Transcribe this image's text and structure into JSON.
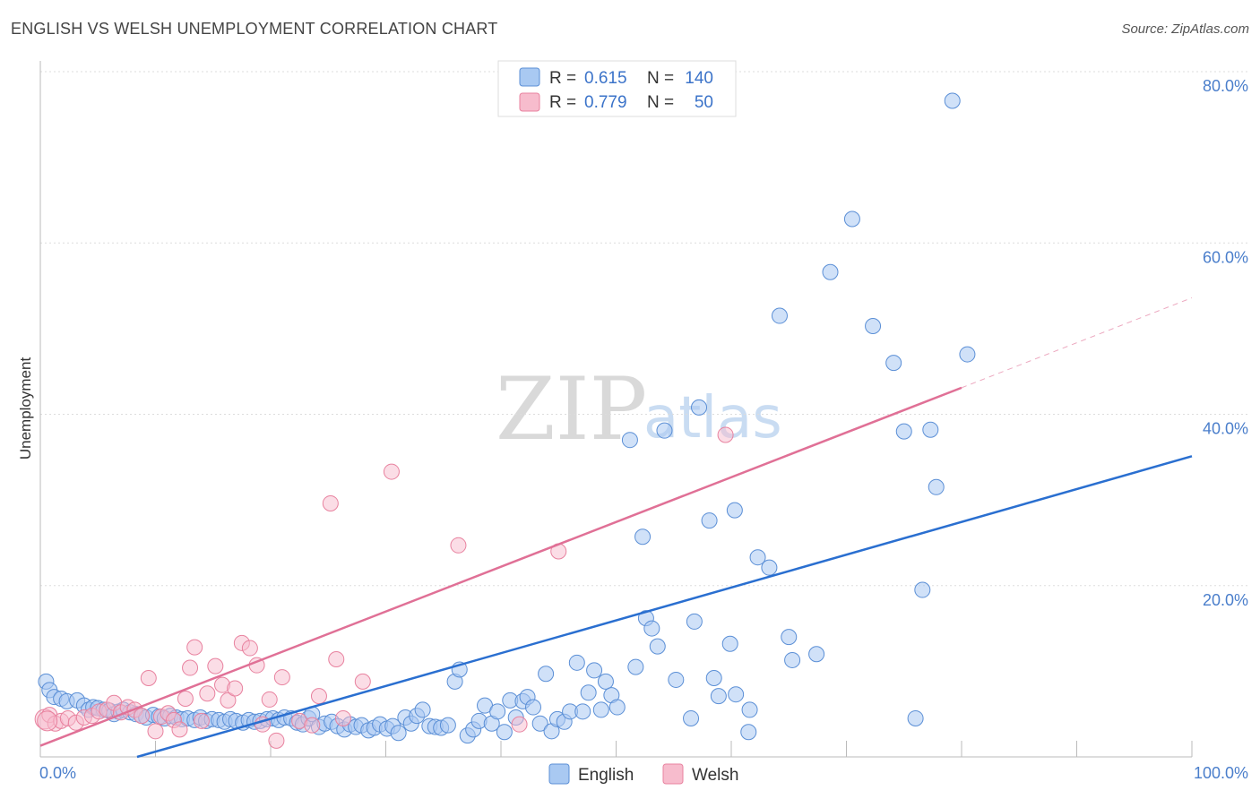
{
  "title": "ENGLISH VS WELSH UNEMPLOYMENT CORRELATION CHART",
  "source": "Source: ZipAtlas.com",
  "watermark": {
    "zip": "ZIP",
    "atlas": "atlas"
  },
  "colors": {
    "english_fill": "#a9c9f2",
    "english_stroke": "#5b8fd6",
    "english_line": "#2a6fd0",
    "welsh_fill": "#f7bccd",
    "welsh_stroke": "#e8829f",
    "welsh_line": "#e07096",
    "grid": "#dddddd",
    "tick_label": "#4a7ecb"
  },
  "legend": {
    "english": {
      "r_label": "R =",
      "r_value": "0.615",
      "n_label": "N =",
      "n_value": "140"
    },
    "welsh": {
      "r_label": "R =",
      "r_value": "0.779",
      "n_label": "N =",
      "n_value": "50"
    }
  },
  "chart_data": {
    "type": "scatter",
    "title": "ENGLISH VS WELSH UNEMPLOYMENT CORRELATION CHART",
    "xlabel": "",
    "ylabel": "Unemployment",
    "xlim": [
      0,
      100
    ],
    "ylim": [
      0,
      80
    ],
    "x_tick_labels": {
      "left": "0.0%",
      "right": "100.0%"
    },
    "y_ticks": [
      20,
      40,
      60,
      80
    ],
    "y_tick_labels": [
      "20.0%",
      "40.0%",
      "60.0%",
      "80.0%"
    ],
    "grid": true,
    "legend_position": "top-center",
    "series": [
      {
        "name": "English",
        "r": 0.615,
        "n": 140,
        "trend": {
          "x0": 8.4,
          "y0": 0,
          "x1": 100,
          "y1": 35.1
        },
        "points": [
          [
            0.5,
            8.8
          ],
          [
            0.8,
            7.8
          ],
          [
            1.2,
            7
          ],
          [
            1.8,
            6.8
          ],
          [
            2.3,
            6.5
          ],
          [
            3.2,
            6.6
          ],
          [
            3.8,
            6
          ],
          [
            4.2,
            5.5
          ],
          [
            4.6,
            5.8
          ],
          [
            5,
            5.7
          ],
          [
            5.5,
            5.5
          ],
          [
            6,
            5.4
          ],
          [
            6.4,
            5
          ],
          [
            6.8,
            5.3
          ],
          [
            7.2,
            5.5
          ],
          [
            7.8,
            5.2
          ],
          [
            8.3,
            5
          ],
          [
            8.8,
            4.8
          ],
          [
            9.2,
            4.6
          ],
          [
            9.8,
            4.9
          ],
          [
            10.3,
            4.7
          ],
          [
            10.8,
            4.5
          ],
          [
            11.3,
            4.8
          ],
          [
            11.8,
            4.6
          ],
          [
            12.3,
            4.4
          ],
          [
            12.8,
            4.5
          ],
          [
            13.4,
            4.3
          ],
          [
            13.9,
            4.6
          ],
          [
            14.4,
            4.2
          ],
          [
            14.9,
            4.4
          ],
          [
            15.5,
            4.3
          ],
          [
            16,
            4.1
          ],
          [
            16.5,
            4.4
          ],
          [
            17,
            4.2
          ],
          [
            17.6,
            4
          ],
          [
            18.1,
            4.3
          ],
          [
            18.6,
            4.1
          ],
          [
            19.1,
            4.2
          ],
          [
            19.7,
            4.4
          ],
          [
            20.2,
            4.5
          ],
          [
            20.7,
            4.3
          ],
          [
            21.2,
            4.6
          ],
          [
            21.8,
            4.5
          ],
          [
            22.3,
            4
          ],
          [
            22.8,
            3.8
          ],
          [
            23.3,
            4.5
          ],
          [
            23.6,
            5
          ],
          [
            24.2,
            3.5
          ],
          [
            24.7,
            3.9
          ],
          [
            25.3,
            4.1
          ],
          [
            25.8,
            3.6
          ],
          [
            26.4,
            3.2
          ],
          [
            26.9,
            3.8
          ],
          [
            27.4,
            3.5
          ],
          [
            27.9,
            3.7
          ],
          [
            28.5,
            3.1
          ],
          [
            29,
            3.4
          ],
          [
            29.5,
            3.8
          ],
          [
            30.1,
            3.3
          ],
          [
            30.6,
            3.6
          ],
          [
            31.1,
            2.8
          ],
          [
            31.7,
            4.6
          ],
          [
            32.2,
            3.9
          ],
          [
            32.7,
            4.8
          ],
          [
            33.2,
            5.5
          ],
          [
            33.8,
            3.6
          ],
          [
            34.3,
            3.5
          ],
          [
            34.8,
            3.4
          ],
          [
            35.4,
            3.7
          ],
          [
            36,
            8.8
          ],
          [
            36.4,
            10.2
          ],
          [
            37.1,
            2.5
          ],
          [
            37.6,
            3.2
          ],
          [
            38.1,
            4.2
          ],
          [
            38.6,
            6
          ],
          [
            39.2,
            3.9
          ],
          [
            39.7,
            5.3
          ],
          [
            40.3,
            2.9
          ],
          [
            40.8,
            6.6
          ],
          [
            41.3,
            4.6
          ],
          [
            41.9,
            6.5
          ],
          [
            42.3,
            7
          ],
          [
            42.8,
            5.8
          ],
          [
            43.4,
            3.9
          ],
          [
            43.9,
            9.7
          ],
          [
            44.4,
            3
          ],
          [
            44.9,
            4.4
          ],
          [
            45.5,
            4.1
          ],
          [
            46,
            5.3
          ],
          [
            46.6,
            11
          ],
          [
            47.1,
            5.3
          ],
          [
            47.6,
            7.5
          ],
          [
            48.1,
            10.1
          ],
          [
            48.7,
            5.5
          ],
          [
            49.1,
            8.8
          ],
          [
            49.6,
            7.2
          ],
          [
            50.1,
            5.8
          ],
          [
            51.2,
            37
          ],
          [
            51.7,
            10.5
          ],
          [
            52.3,
            25.7
          ],
          [
            52.6,
            16.2
          ],
          [
            53.1,
            15
          ],
          [
            53.6,
            12.9
          ],
          [
            54.2,
            38.1
          ],
          [
            55.2,
            9
          ],
          [
            56.5,
            4.5
          ],
          [
            56.8,
            15.8
          ],
          [
            57.2,
            40.8
          ],
          [
            58.1,
            27.6
          ],
          [
            58.5,
            9.2
          ],
          [
            58.9,
            7.1
          ],
          [
            59.9,
            13.2
          ],
          [
            60.3,
            28.8
          ],
          [
            60.4,
            7.3
          ],
          [
            61.6,
            5.5
          ],
          [
            61.5,
            2.9
          ],
          [
            62.3,
            23.3
          ],
          [
            63.3,
            22.1
          ],
          [
            64.2,
            51.5
          ],
          [
            65,
            14
          ],
          [
            65.3,
            11.3
          ],
          [
            67.4,
            12
          ],
          [
            68.6,
            56.6
          ],
          [
            70.5,
            62.8
          ],
          [
            72.3,
            50.3
          ],
          [
            74.1,
            46
          ],
          [
            75,
            38
          ],
          [
            76,
            4.5
          ],
          [
            76.6,
            19.5
          ],
          [
            77.3,
            38.2
          ],
          [
            77.8,
            31.5
          ],
          [
            79.2,
            76.6
          ],
          [
            80.5,
            47
          ]
        ]
      },
      {
        "name": "Welsh",
        "r": 0.779,
        "n": 50,
        "trend": {
          "x0": 0,
          "y0": 1.3,
          "x1": 80,
          "y1": 43.1
        },
        "trend_dashed": {
          "x0": 80,
          "y0": 43.1,
          "x1": 100,
          "y1": 53.6
        },
        "points": [
          [
            0.4,
            4.4
          ],
          [
            0.8,
            4.9
          ],
          [
            1.3,
            3.9
          ],
          [
            1.8,
            4.2
          ],
          [
            2.4,
            4.5
          ],
          [
            3.1,
            4
          ],
          [
            3.8,
            4.6
          ],
          [
            4.5,
            4.8
          ],
          [
            5.1,
            5.3
          ],
          [
            5.8,
            5.5
          ],
          [
            6.4,
            6.3
          ],
          [
            7,
            5.2
          ],
          [
            7.6,
            5.8
          ],
          [
            8.2,
            5.5
          ],
          [
            8.8,
            4.8
          ],
          [
            9.4,
            9.2
          ],
          [
            10,
            3
          ],
          [
            10.5,
            4.7
          ],
          [
            11.1,
            5.1
          ],
          [
            11.6,
            4.3
          ],
          [
            12.1,
            3.2
          ],
          [
            12.6,
            6.8
          ],
          [
            13,
            10.4
          ],
          [
            13.4,
            12.8
          ],
          [
            14,
            4.2
          ],
          [
            14.5,
            7.4
          ],
          [
            15.2,
            10.6
          ],
          [
            15.8,
            8.4
          ],
          [
            16.3,
            6.6
          ],
          [
            16.9,
            8
          ],
          [
            17.5,
            13.3
          ],
          [
            18.2,
            12.7
          ],
          [
            18.8,
            10.7
          ],
          [
            19.3,
            3.8
          ],
          [
            19.9,
            6.7
          ],
          [
            20.5,
            1.9
          ],
          [
            21,
            9.3
          ],
          [
            22.5,
            4.2
          ],
          [
            23.6,
            3.7
          ],
          [
            24.2,
            7.1
          ],
          [
            25.2,
            29.6
          ],
          [
            25.7,
            11.4
          ],
          [
            26.3,
            4.5
          ],
          [
            28,
            8.8
          ],
          [
            30.5,
            33.3
          ],
          [
            36.3,
            24.7
          ],
          [
            41.6,
            3.8
          ],
          [
            45,
            24
          ],
          [
            59.5,
            37.6
          ],
          [
            0.6,
            4.2
          ]
        ]
      }
    ]
  }
}
